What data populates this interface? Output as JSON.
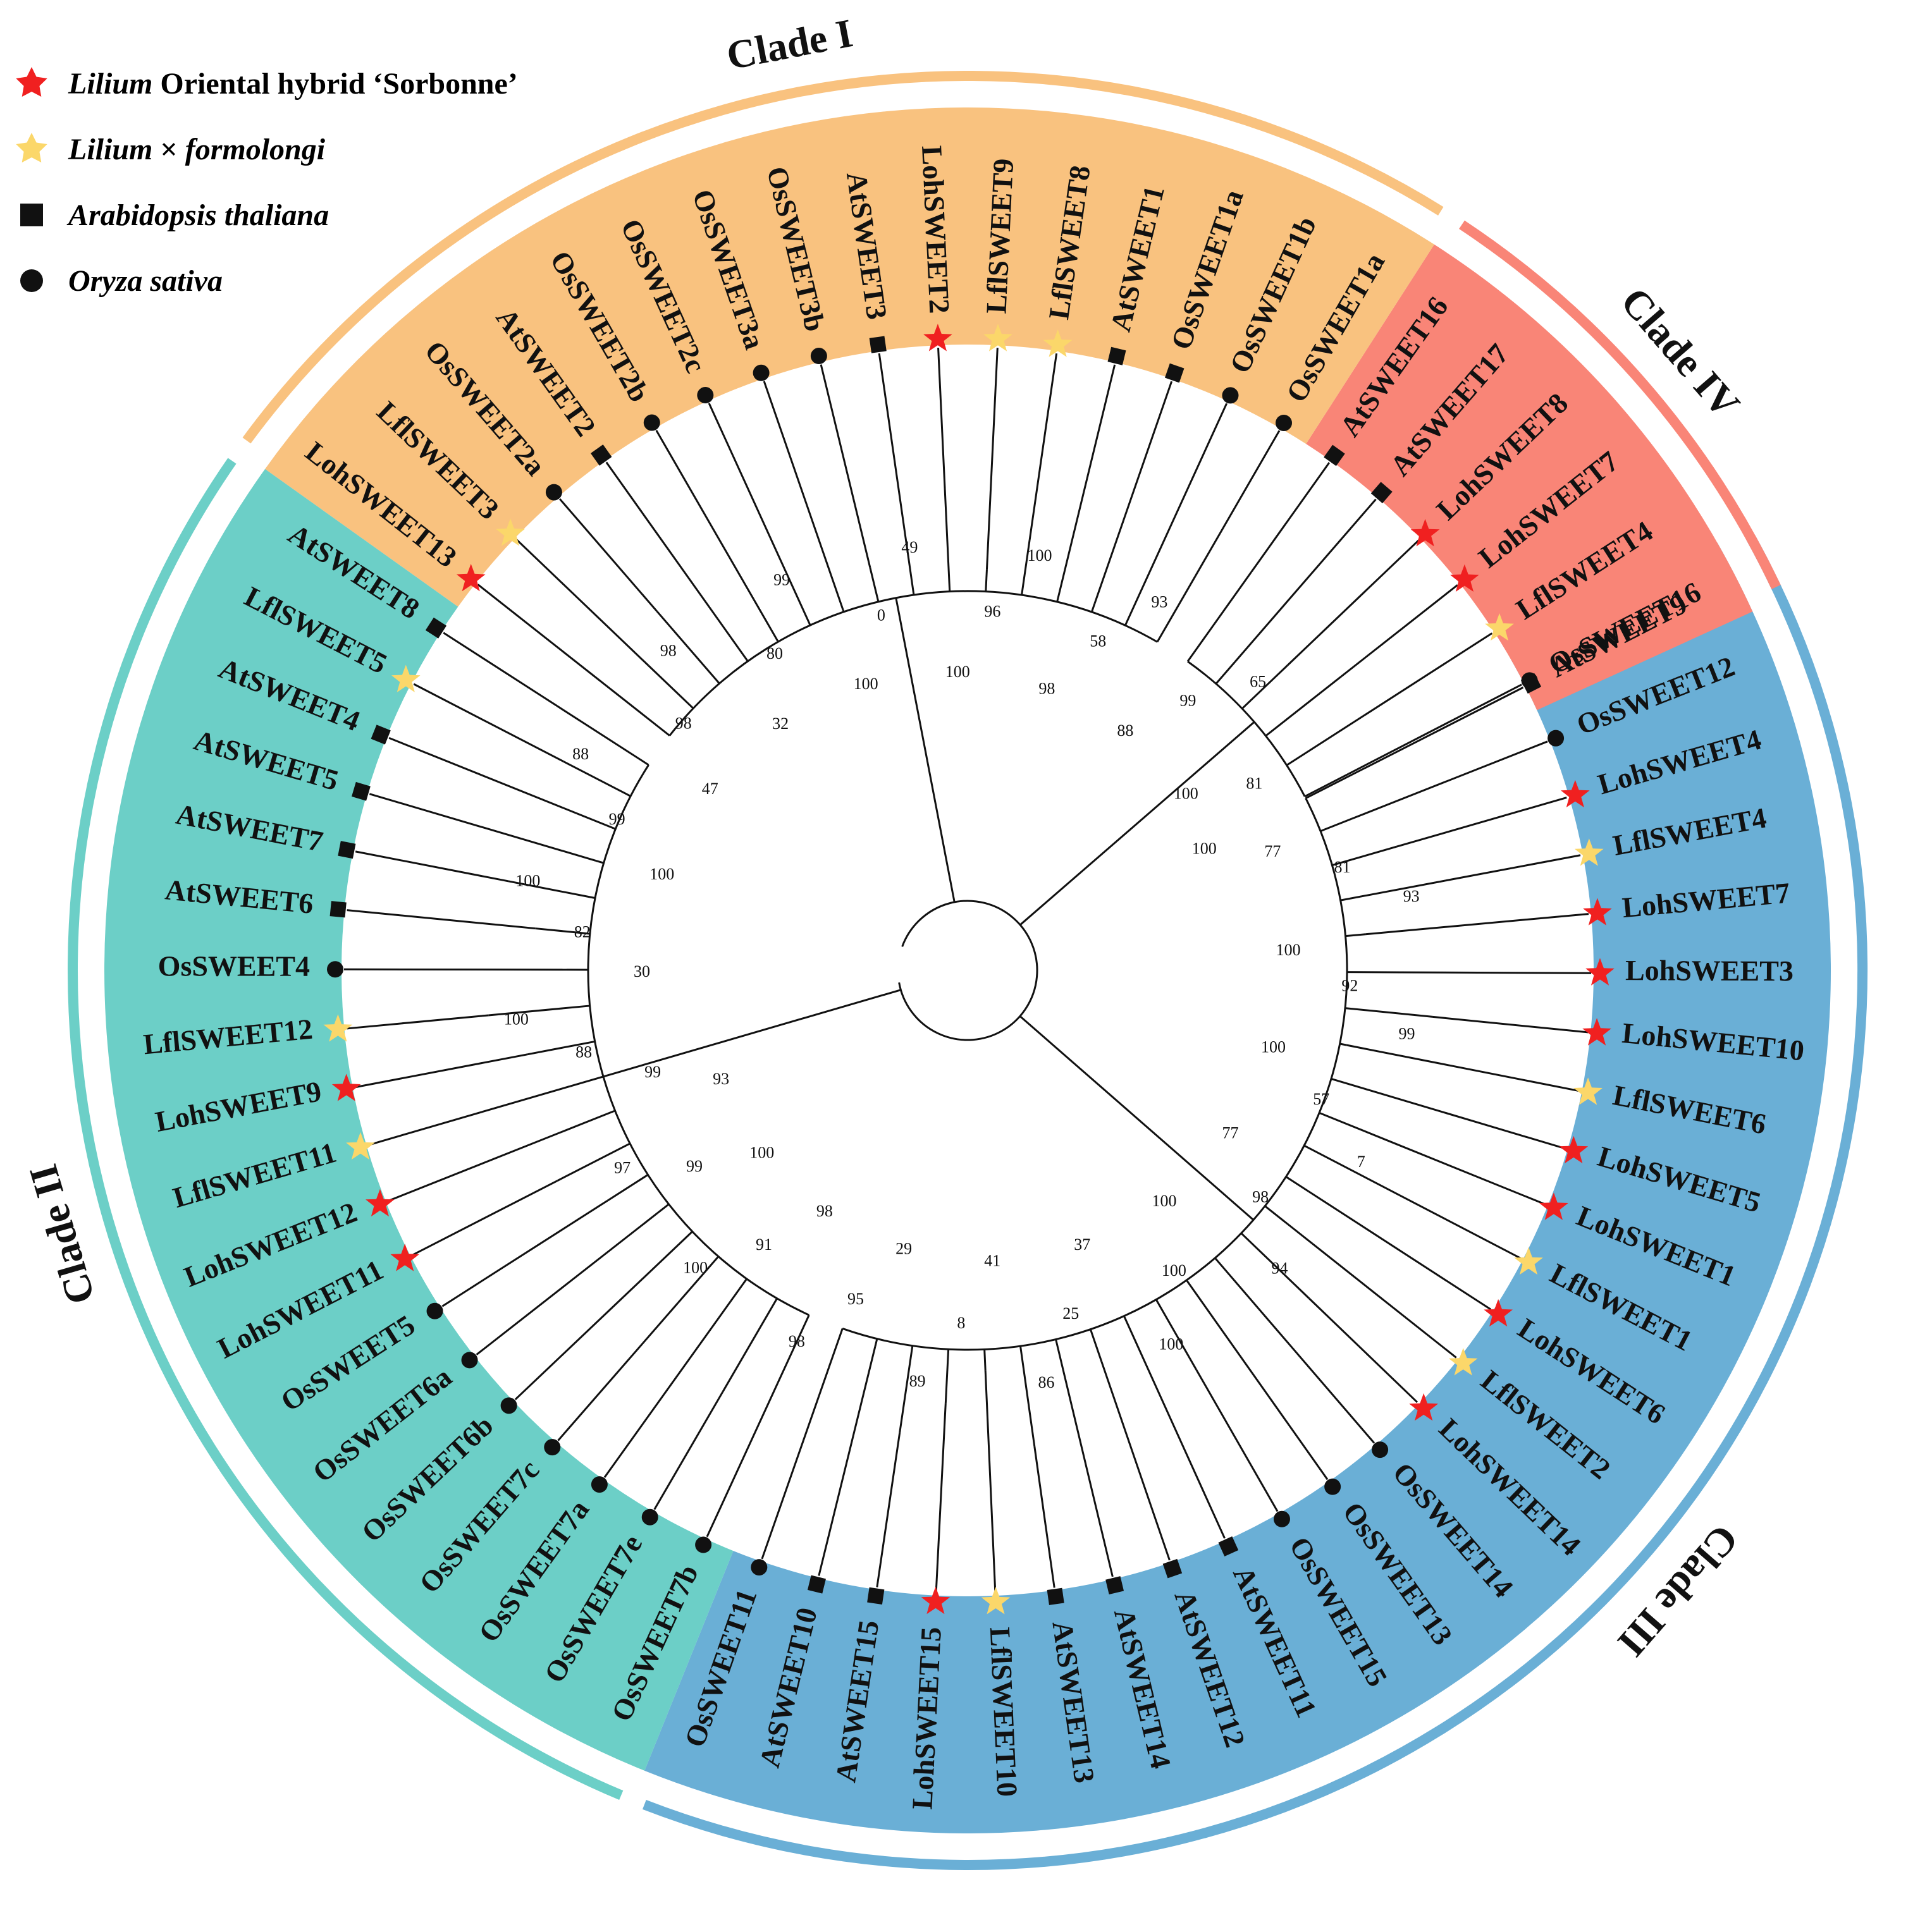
{
  "colors": {
    "clade1": "#F9C27F",
    "clade2": "#6CCFC7",
    "clade3": "#6AAFD6",
    "clade4": "#F98577",
    "lilium_oriental": "#F02020",
    "lilium_formolongi": "#FBD76A",
    "marker_black": "#111111"
  },
  "legend": [
    {
      "marker": "red-star",
      "italic": "Lilium",
      "rest": " Oriental hybrid ‘Sorbonne’"
    },
    {
      "marker": "yellow-star",
      "italic": "Lilium",
      "rest": " × ",
      "italic2": "formolongi"
    },
    {
      "marker": "square",
      "italic": "Arabidopsis thaliana",
      "rest": ""
    },
    {
      "marker": "circle",
      "italic": "Oryza sativa",
      "rest": ""
    }
  ],
  "clades": [
    {
      "id": "clade3",
      "label": "Clade III",
      "color_key": "clade3"
    },
    {
      "id": "clade4",
      "label": "Clade IV",
      "color_key": "clade4"
    },
    {
      "id": "clade1",
      "label": "Clade I",
      "color_key": "clade1"
    },
    {
      "id": "clade2",
      "label": "Clade II",
      "color_key": "clade2"
    }
  ],
  "leaves": [
    {
      "name": "AtSWEET9",
      "marker": "square",
      "clade": "clade3"
    },
    {
      "name": "OsSWEET12",
      "marker": "circle",
      "clade": "clade3"
    },
    {
      "name": "LohSWEET4",
      "marker": "red-star",
      "clade": "clade3"
    },
    {
      "name": "LflSWEET4",
      "marker": "yellow-star",
      "clade": "clade3"
    },
    {
      "name": "LohSWEET7",
      "marker": "red-star",
      "clade": "clade3"
    },
    {
      "name": "LohSWEET3",
      "marker": "red-star",
      "clade": "clade3"
    },
    {
      "name": "LohSWEET10",
      "marker": "red-star",
      "clade": "clade3"
    },
    {
      "name": "LflSWEET6",
      "marker": "yellow-star",
      "clade": "clade3"
    },
    {
      "name": "LohSWEET5",
      "marker": "red-star",
      "clade": "clade3"
    },
    {
      "name": "LohSWEET1",
      "marker": "red-star",
      "clade": "clade3"
    },
    {
      "name": "LflSWEET1",
      "marker": "yellow-star",
      "clade": "clade3"
    },
    {
      "name": "LohSWEET6",
      "marker": "red-star",
      "clade": "clade3"
    },
    {
      "name": "LflSWEET2",
      "marker": "yellow-star",
      "clade": "clade3"
    },
    {
      "name": "LohSWEET14",
      "marker": "red-star",
      "clade": "clade3"
    },
    {
      "name": "OsSWEET14",
      "marker": "circle",
      "clade": "clade3"
    },
    {
      "name": "OsSWEET13",
      "marker": "circle",
      "clade": "clade3"
    },
    {
      "name": "OsSWEET15",
      "marker": "circle",
      "clade": "clade3"
    },
    {
      "name": "AtSWEET11",
      "marker": "square",
      "clade": "clade3"
    },
    {
      "name": "AtSWEET12",
      "marker": "square",
      "clade": "clade3"
    },
    {
      "name": "AtSWEET14",
      "marker": "square",
      "clade": "clade3"
    },
    {
      "name": "AtSWEET13",
      "marker": "square",
      "clade": "clade3"
    },
    {
      "name": "LflSWEET10",
      "marker": "yellow-star",
      "clade": "clade3"
    },
    {
      "name": "LohSWEET15",
      "marker": "red-star",
      "clade": "clade3"
    },
    {
      "name": "AtSWEET15",
      "marker": "square",
      "clade": "clade3"
    },
    {
      "name": "AtSWEET10",
      "marker": "square",
      "clade": "clade3"
    },
    {
      "name": "OsSWEET11",
      "marker": "circle",
      "clade": "clade3"
    },
    {
      "name": "OsSWEET7b",
      "marker": "circle",
      "clade": "clade2"
    },
    {
      "name": "OsSWEET7e",
      "marker": "circle",
      "clade": "clade2"
    },
    {
      "name": "OsSWEET7a",
      "marker": "circle",
      "clade": "clade2"
    },
    {
      "name": "OsSWEET7c",
      "marker": "circle",
      "clade": "clade2"
    },
    {
      "name": "OsSWEET6b",
      "marker": "circle",
      "clade": "clade2"
    },
    {
      "name": "OsSWEET6a",
      "marker": "circle",
      "clade": "clade2"
    },
    {
      "name": "OsSWEET5",
      "marker": "circle",
      "clade": "clade2"
    },
    {
      "name": "LohSWEET11",
      "marker": "red-star",
      "clade": "clade2"
    },
    {
      "name": "LohSWEET12",
      "marker": "red-star",
      "clade": "clade2"
    },
    {
      "name": "LflSWEET11",
      "marker": "yellow-star",
      "clade": "clade2"
    },
    {
      "name": "LohSWEET9",
      "marker": "red-star",
      "clade": "clade2"
    },
    {
      "name": "LflSWEET12",
      "marker": "yellow-star",
      "clade": "clade2"
    },
    {
      "name": "OsSWEET4",
      "marker": "circle",
      "clade": "clade2"
    },
    {
      "name": "AtSWEET6",
      "marker": "square",
      "clade": "clade2"
    },
    {
      "name": "AtSWEET7",
      "marker": "square",
      "clade": "clade2"
    },
    {
      "name": "AtSWEET5",
      "marker": "square",
      "clade": "clade2"
    },
    {
      "name": "AtSWEET4",
      "marker": "square",
      "clade": "clade2"
    },
    {
      "name": "LflSWEET5",
      "marker": "yellow-star",
      "clade": "clade2"
    },
    {
      "name": "AtSWEET8",
      "marker": "square",
      "clade": "clade2"
    },
    {
      "name": "LohSWEET13",
      "marker": "red-star",
      "clade": "clade1"
    },
    {
      "name": "LflSWEET3",
      "marker": "yellow-star",
      "clade": "clade1"
    },
    {
      "name": "OsSWEET2a",
      "marker": "circle",
      "clade": "clade1"
    },
    {
      "name": "AtSWEET2",
      "marker": "square",
      "clade": "clade1"
    },
    {
      "name": "OsSWEET2b",
      "marker": "circle",
      "clade": "clade1"
    },
    {
      "name": "OsSWEET2c",
      "marker": "circle",
      "clade": "clade1"
    },
    {
      "name": "OsSWEET3a",
      "marker": "circle",
      "clade": "clade1"
    },
    {
      "name": "OsSWEET3b",
      "marker": "circle",
      "clade": "clade1"
    },
    {
      "name": "AtSWEET3",
      "marker": "square",
      "clade": "clade1"
    },
    {
      "name": "LohSWEET2",
      "marker": "red-star",
      "clade": "clade1"
    },
    {
      "name": "LflSWEET9",
      "marker": "yellow-star",
      "clade": "clade1"
    },
    {
      "name": "LflSWEET8",
      "marker": "yellow-star",
      "clade": "clade1"
    },
    {
      "name": "AtSWEET1",
      "marker": "square",
      "clade": "clade1"
    },
    {
      "name": "OsSWEET1a",
      "marker": "square",
      "clade": "clade1"
    },
    {
      "name": "OsSWEET1b",
      "marker": "circle",
      "clade": "clade1"
    },
    {
      "name": "OsSWEET1a",
      "marker": "circle",
      "clade": "clade1"
    },
    {
      "name": "AtSWEET16",
      "marker": "square",
      "clade": "clade4"
    },
    {
      "name": "AtSWEET17",
      "marker": "square",
      "clade": "clade4"
    },
    {
      "name": "LohSWEET8",
      "marker": "red-star",
      "clade": "clade4"
    },
    {
      "name": "LohSWEET7",
      "marker": "red-star",
      "clade": "clade4"
    },
    {
      "name": "LflSWEET4",
      "marker": "yellow-star",
      "clade": "clade4"
    },
    {
      "name": "OsSWEET16",
      "marker": "circle",
      "clade": "clade4"
    }
  ],
  "bootstrap_values": [
    "100",
    "77",
    "81",
    "93",
    "100",
    "92",
    "99",
    "100",
    "57",
    "7",
    "77",
    "98",
    "94",
    "100",
    "100",
    "100",
    "37",
    "25",
    "86",
    "41",
    "8",
    "89",
    "29",
    "95",
    "98",
    "98",
    "91",
    "100",
    "100",
    "99",
    "97",
    "93",
    "99",
    "88",
    "100",
    "30",
    "82",
    "100",
    "100",
    "99",
    "88",
    "47",
    "98",
    "98",
    "32",
    "80",
    "99",
    "100",
    "0",
    "49",
    "100",
    "96",
    "100",
    "98",
    "58",
    "93",
    "88",
    "99",
    "65",
    "100",
    "81"
  ]
}
